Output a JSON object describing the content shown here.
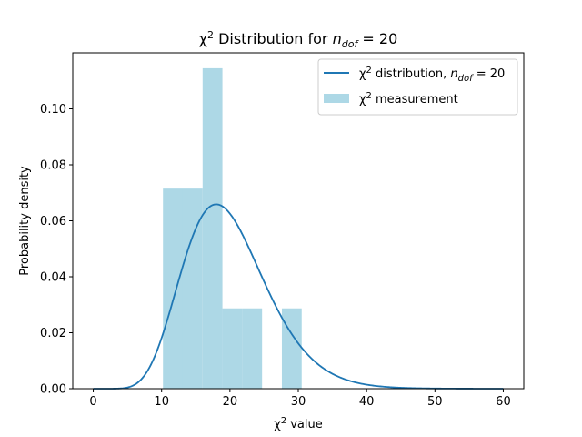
{
  "chart_data": {
    "type": "histogram+line",
    "title": {
      "prefix": "χ",
      "sup": "2",
      "middle": " Distribution for ",
      "var": "n",
      "sub": "dof",
      "suffix": " = 20"
    },
    "xlabel": {
      "prefix": "χ",
      "sup": "2",
      "suffix": " value"
    },
    "ylabel": "Probability density",
    "xlim": [
      -3,
      63
    ],
    "ylim": [
      0,
      0.12
    ],
    "xticks": [
      0,
      10,
      20,
      30,
      40,
      50,
      60
    ],
    "yticks": [
      0.0,
      0.02,
      0.04,
      0.06,
      0.08,
      0.1
    ],
    "ytick_labels": [
      "0.00",
      "0.02",
      "0.04",
      "0.06",
      "0.08",
      "0.10"
    ],
    "series": [
      {
        "kind": "line",
        "color": "#1f77b4",
        "dof": 20,
        "x_range": [
          0,
          60
        ],
        "legend": {
          "prefix": "χ",
          "sup": "2",
          "middle": " distribution, ",
          "var": "n",
          "sub": "dof",
          "suffix": " = 20"
        }
      },
      {
        "kind": "histogram",
        "color": "#add8e6",
        "bin_edges": [
          10.2,
          13.1,
          16.0,
          18.9,
          21.8,
          24.7,
          27.6,
          30.5
        ],
        "densities": [
          0.0715,
          0.0715,
          0.1145,
          0.0287,
          0.0287,
          0.0,
          0.0287
        ],
        "legend": {
          "prefix": "χ",
          "sup": "2",
          "suffix": " measurement"
        }
      }
    ],
    "legend_position": "upper-right"
  }
}
